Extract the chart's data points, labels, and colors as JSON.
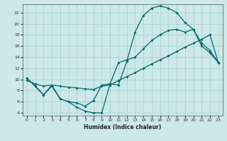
{
  "xlabel": "Humidex (Indice chaleur)",
  "bg_color": "#cce8e8",
  "line_color": "#006868",
  "grid_color": "#aad4d4",
  "xlim": [
    -0.5,
    23.5
  ],
  "ylim": [
    3.5,
    23.5
  ],
  "xticks": [
    0,
    1,
    2,
    3,
    4,
    5,
    6,
    7,
    8,
    9,
    10,
    11,
    12,
    13,
    14,
    15,
    16,
    17,
    18,
    19,
    20,
    21,
    22,
    23
  ],
  "yticks": [
    4,
    6,
    8,
    10,
    12,
    14,
    16,
    18,
    20,
    22
  ],
  "line1_x": [
    0,
    1,
    2,
    3,
    4,
    5,
    6,
    7,
    8,
    9,
    10,
    11,
    12,
    13,
    14,
    15,
    16,
    17,
    18,
    19,
    20,
    21,
    22,
    23
  ],
  "line1_y": [
    10.2,
    8.8,
    7.2,
    9.0,
    6.5,
    6.0,
    5.0,
    4.3,
    4.0,
    4.0,
    9.2,
    9.0,
    13.2,
    18.5,
    21.5,
    22.8,
    23.2,
    22.8,
    22.0,
    20.2,
    19.0,
    16.5,
    15.2,
    13.0
  ],
  "line2_x": [
    0,
    1,
    2,
    3,
    4,
    5,
    6,
    7,
    8,
    9,
    10,
    11,
    12,
    13,
    14,
    15,
    16,
    17,
    18,
    19,
    20,
    21,
    22,
    23
  ],
  "line2_y": [
    9.8,
    9.2,
    8.8,
    9.0,
    8.8,
    8.6,
    8.5,
    8.3,
    8.2,
    8.8,
    9.0,
    9.8,
    10.5,
    11.2,
    12.0,
    12.8,
    13.5,
    14.2,
    15.0,
    15.8,
    16.5,
    17.2,
    18.0,
    13.0
  ],
  "line3_x": [
    0,
    1,
    2,
    3,
    4,
    5,
    6,
    7,
    8,
    9,
    10,
    11,
    12,
    13,
    14,
    15,
    16,
    17,
    18,
    19,
    20,
    21,
    22,
    23
  ],
  "line3_y": [
    10.2,
    8.8,
    7.2,
    8.8,
    6.5,
    6.0,
    5.8,
    5.2,
    6.2,
    9.0,
    9.2,
    13.0,
    13.5,
    14.0,
    15.5,
    17.0,
    18.0,
    18.8,
    19.0,
    18.5,
    19.0,
    16.0,
    14.8,
    13.0
  ]
}
